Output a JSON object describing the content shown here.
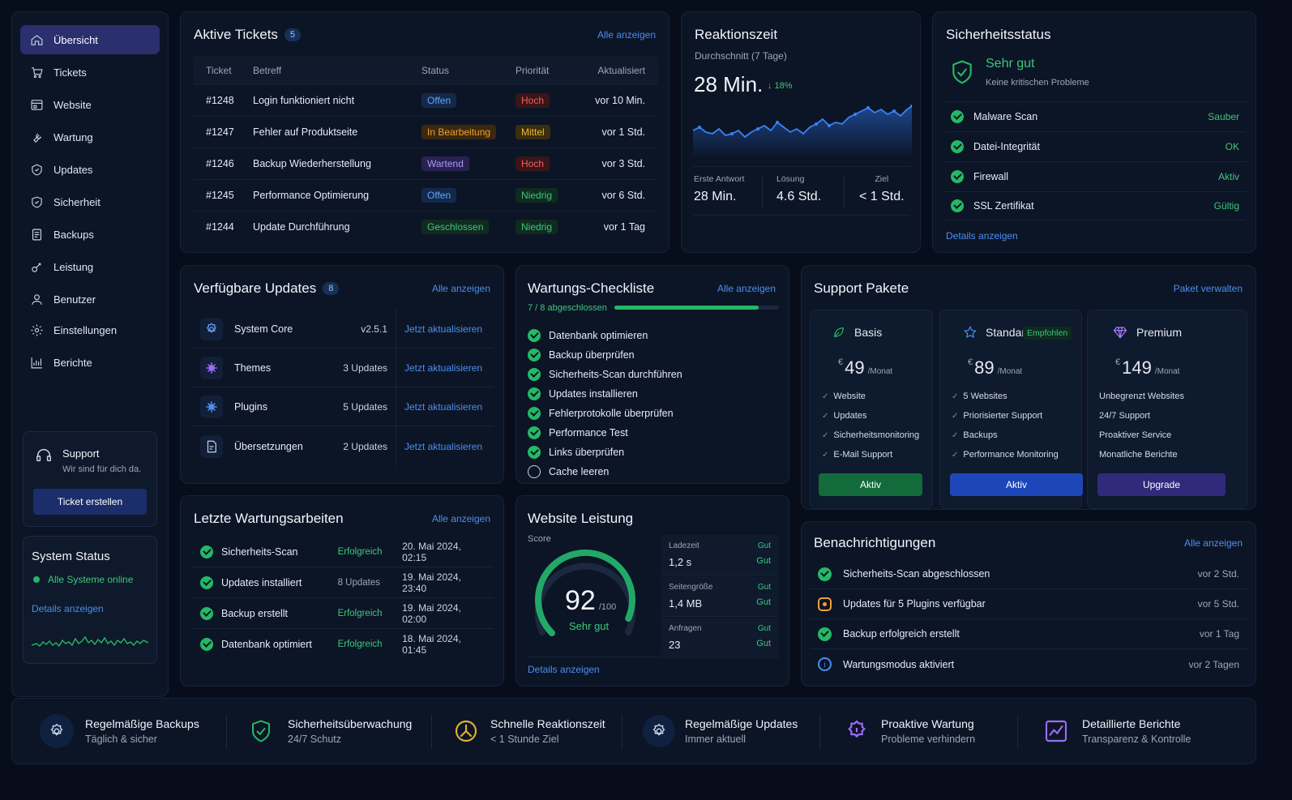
{
  "sidebar": {
    "items": [
      {
        "label": "Übersicht",
        "icon": "home-icon"
      },
      {
        "label": "Tickets",
        "icon": "cart-icon"
      },
      {
        "label": "Website",
        "icon": "website-icon"
      },
      {
        "label": "Wartung",
        "icon": "wrench-icon"
      },
      {
        "label": "Updates",
        "icon": "updates-icon"
      },
      {
        "label": "Sicherheit",
        "icon": "shield-icon"
      },
      {
        "label": "Backups",
        "icon": "backup-icon"
      },
      {
        "label": "Leistung",
        "icon": "performance-icon"
      },
      {
        "label": "Benutzer",
        "icon": "user-icon"
      },
      {
        "label": "Einstellungen",
        "icon": "gear-icon"
      },
      {
        "label": "Berichte",
        "icon": "chart-icon"
      }
    ],
    "support": {
      "title": "Support",
      "subtitle": "Wir sind für dich da.",
      "button": "Ticket erstellen"
    },
    "system_status": {
      "title": "System Status",
      "status": "Alle Systeme online",
      "link": "Details anzeigen"
    }
  },
  "tickets": {
    "title": "Aktive Tickets",
    "count": "5",
    "link": "Alle anzeigen",
    "columns": [
      "Ticket",
      "Betreff",
      "Status",
      "Priorität",
      "Aktualisiert"
    ],
    "rows": [
      {
        "id": "#1248",
        "subject": "Login funktioniert nicht",
        "status": "Offen",
        "priority": "Hoch",
        "updated": "vor 10 Min."
      },
      {
        "id": "#1247",
        "subject": "Fehler auf Produktseite",
        "status": "In Bearbeitung",
        "priority": "Mittel",
        "updated": "vor 1 Std."
      },
      {
        "id": "#1246",
        "subject": "Backup Wiederherstellung",
        "status": "Wartend",
        "priority": "Hoch",
        "updated": "vor 3 Std."
      },
      {
        "id": "#1245",
        "subject": "Performance Optimierung",
        "status": "Offen",
        "priority": "Niedrig",
        "updated": "vor 6 Std."
      },
      {
        "id": "#1244",
        "subject": "Update Durchführung",
        "status": "Geschlossen",
        "priority": "Niedrig",
        "updated": "vor 1 Tag"
      }
    ]
  },
  "reaction": {
    "title": "Reaktionszeit",
    "subtitle": "Durchschnitt (7 Tage)",
    "value": "28 Min.",
    "delta": "↓ 18%",
    "stats": [
      {
        "label": "Erste Antwort",
        "value": "28 Min."
      },
      {
        "label": "Lösung",
        "value": "4.6 Std."
      },
      {
        "label": "Ziel",
        "value": "< 1 Std."
      }
    ]
  },
  "security": {
    "title": "Sicherheitsstatus",
    "headline": "Sehr gut",
    "sub": "Keine kritischen Probleme",
    "items": [
      {
        "label": "Malware Scan",
        "value": "Sauber"
      },
      {
        "label": "Datei-Integrität",
        "value": "OK"
      },
      {
        "label": "Firewall",
        "value": "Aktiv"
      },
      {
        "label": "SSL Zertifikat",
        "value": "Gültig"
      }
    ],
    "link": "Details anzeigen"
  },
  "updates": {
    "title": "Verfügbare Updates",
    "count": "8",
    "link": "Alle anzeigen",
    "items": [
      {
        "name": "System Core",
        "info": "v2.5.1",
        "action": "Jetzt aktualisieren"
      },
      {
        "name": "Themes",
        "info": "3 Updates",
        "action": "Jetzt aktualisieren"
      },
      {
        "name": "Plugins",
        "info": "5 Updates",
        "action": "Jetzt aktualisieren"
      },
      {
        "name": "Übersetzungen",
        "info": "2 Updates",
        "action": "Jetzt aktualisieren"
      }
    ]
  },
  "checklist": {
    "title": "Wartungs-Checkliste",
    "link": "Alle anzeigen",
    "progress_label": "7 / 8 abgeschlossen",
    "progress": 0.875,
    "items": [
      {
        "label": "Datenbank optimieren",
        "done": true
      },
      {
        "label": "Backup überprüfen",
        "done": true
      },
      {
        "label": "Sicherheits-Scan durchführen",
        "done": true
      },
      {
        "label": "Updates installieren",
        "done": true
      },
      {
        "label": "Fehlerprotokolle überprüfen",
        "done": true
      },
      {
        "label": "Performance Test",
        "done": true
      },
      {
        "label": "Links überprüfen",
        "done": true
      },
      {
        "label": "Cache leeren",
        "done": false
      }
    ]
  },
  "packages": {
    "title": "Support Pakete",
    "link": "Paket verwalten",
    "items": [
      {
        "name": "Basis",
        "currency": "€",
        "price": "49",
        "period": "/Monat",
        "features": [
          "Website",
          "Updates",
          "Sicherheitsmonitoring",
          "E-Mail Support"
        ],
        "button": "Aktiv",
        "badge": ""
      },
      {
        "name": "Standard",
        "currency": "€",
        "price": "89",
        "period": "/Monat",
        "features": [
          "5 Websites",
          "Priorisierter Support",
          "Backups",
          "Performance Monitoring"
        ],
        "button": "Aktiv",
        "badge": "Empfohlen"
      },
      {
        "name": "Premium",
        "currency": "€",
        "price": "149",
        "period": "/Monat",
        "features": [
          "Unbegrenzt Websites",
          "24/7 Support",
          "Proaktiver Service",
          "Monatliche Berichte"
        ],
        "button": "Upgrade",
        "badge": ""
      }
    ]
  },
  "recent": {
    "title": "Letzte Wartungsarbeiten",
    "link": "Alle anzeigen",
    "items": [
      {
        "label": "Sicherheits-Scan",
        "status": "Erfolgreich",
        "date": "20. Mai 2024, 02:15"
      },
      {
        "label": "Updates installiert",
        "status": "8 Updates",
        "date": "19. Mai 2024, 23:40"
      },
      {
        "label": "Backup erstellt",
        "status": "Erfolgreich",
        "date": "19. Mai 2024, 02:00"
      },
      {
        "label": "Datenbank optimiert",
        "status": "Erfolgreich",
        "date": "18. Mai 2024, 01:45"
      }
    ]
  },
  "performance": {
    "title": "Website Leistung",
    "score_label": "Score",
    "score": "92",
    "score_max": "/100",
    "score_text": "Sehr gut",
    "score_value": 92,
    "metrics": [
      {
        "label": "Ladezeit",
        "value": "1,2 s",
        "tag": "Gut",
        "status": "Gut"
      },
      {
        "label": "Seitengröße",
        "value": "1,4 MB",
        "tag": "Gut",
        "status": "Gut"
      },
      {
        "label": "Anfragen",
        "value": "23",
        "tag": "Gut",
        "status": "Gut"
      }
    ],
    "link": "Details anzeigen"
  },
  "notifications": {
    "title": "Benachrichtigungen",
    "link": "Alle anzeigen",
    "items": [
      {
        "label": "Sicherheits-Scan abgeschlossen",
        "time": "vor 2 Std.",
        "type": "success"
      },
      {
        "label": "Updates für 5 Plugins verfügbar",
        "time": "vor 5 Std.",
        "type": "warning"
      },
      {
        "label": "Backup erfolgreich erstellt",
        "time": "vor 1 Tag",
        "type": "success"
      },
      {
        "label": "Wartungsmodus aktiviert",
        "time": "vor 2 Tagen",
        "type": "info"
      }
    ]
  },
  "footer": [
    {
      "title": "Regelmäßige Backups",
      "sub": "Täglich & sicher"
    },
    {
      "title": "Sicherheitsüberwachung",
      "sub": "24/7 Schutz"
    },
    {
      "title": "Schnelle Reaktionszeit",
      "sub": "< 1 Stunde Ziel"
    },
    {
      "title": "Regelmäßige Updates",
      "sub": "Immer aktuell"
    },
    {
      "title": "Proaktive Wartung",
      "sub": "Probleme verhindern"
    },
    {
      "title": "Detaillierte Berichte",
      "sub": "Transparenz & Kontrolle"
    }
  ],
  "colors": {
    "accent": "#4b8ef0",
    "success": "#25b865",
    "warning": "#f0a030",
    "premium": "#9b6cf5"
  }
}
